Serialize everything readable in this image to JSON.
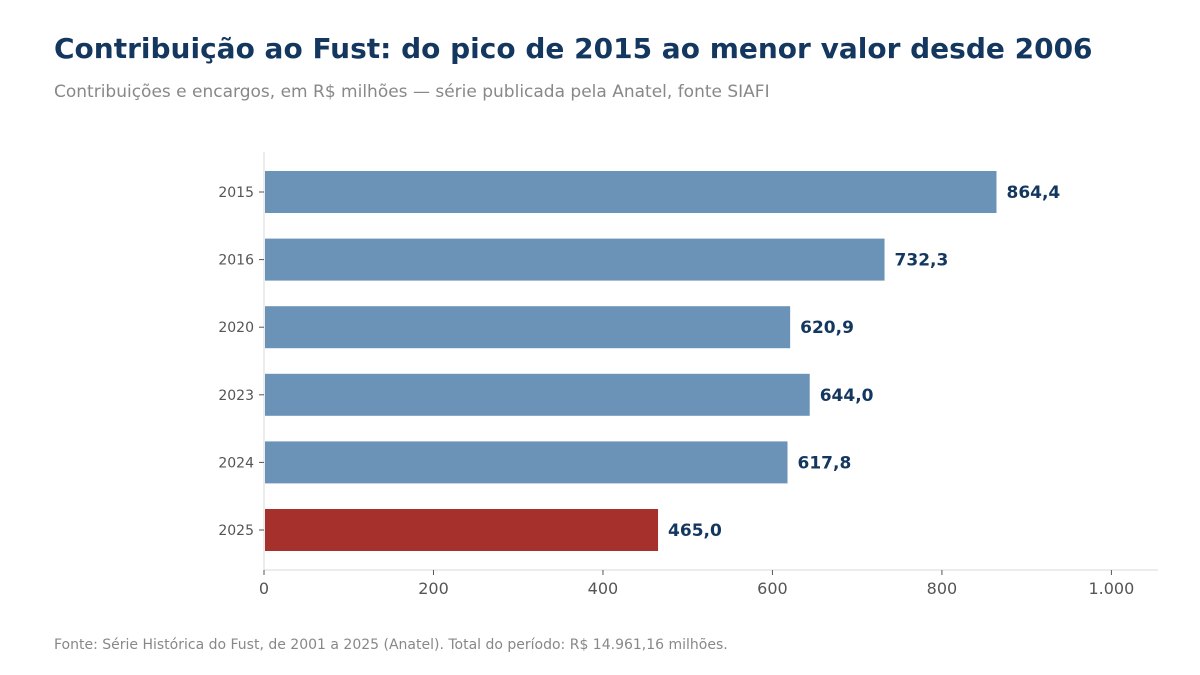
{
  "title": "Contribuição ao Fust: do pico de 2015 ao menor valor desde 2006",
  "subtitle": "Contribuições e encargos, em R$ milhões — série publicada pela Anatel, fonte SIAFI",
  "footer": "Fonte: Série Histórica do Fust, de 2001 a 2025 (Anatel). Total do período: R$ 14.961,16 milhões.",
  "chart_data": {
    "type": "bar",
    "orientation": "horizontal",
    "categories": [
      "2015",
      "2016",
      "2020",
      "2023",
      "2024",
      "2025"
    ],
    "values": [
      864.4,
      732.3,
      620.9,
      644.0,
      617.8,
      465.0
    ],
    "value_labels": [
      "864,4",
      "732,3",
      "620,9",
      "644,0",
      "617,8",
      "465,0"
    ],
    "xticks": [
      0,
      200,
      400,
      600,
      800,
      1000
    ],
    "xtick_labels": [
      "0",
      "200",
      "400",
      "600",
      "800",
      "1.000"
    ],
    "xlim": [
      0,
      1055
    ],
    "grid": false,
    "colors": {
      "default": "#6a93b7",
      "highlight": "#a5302c",
      "label": "#13375e",
      "axis": "#d8d8d8"
    },
    "highlight_category": "2025"
  }
}
